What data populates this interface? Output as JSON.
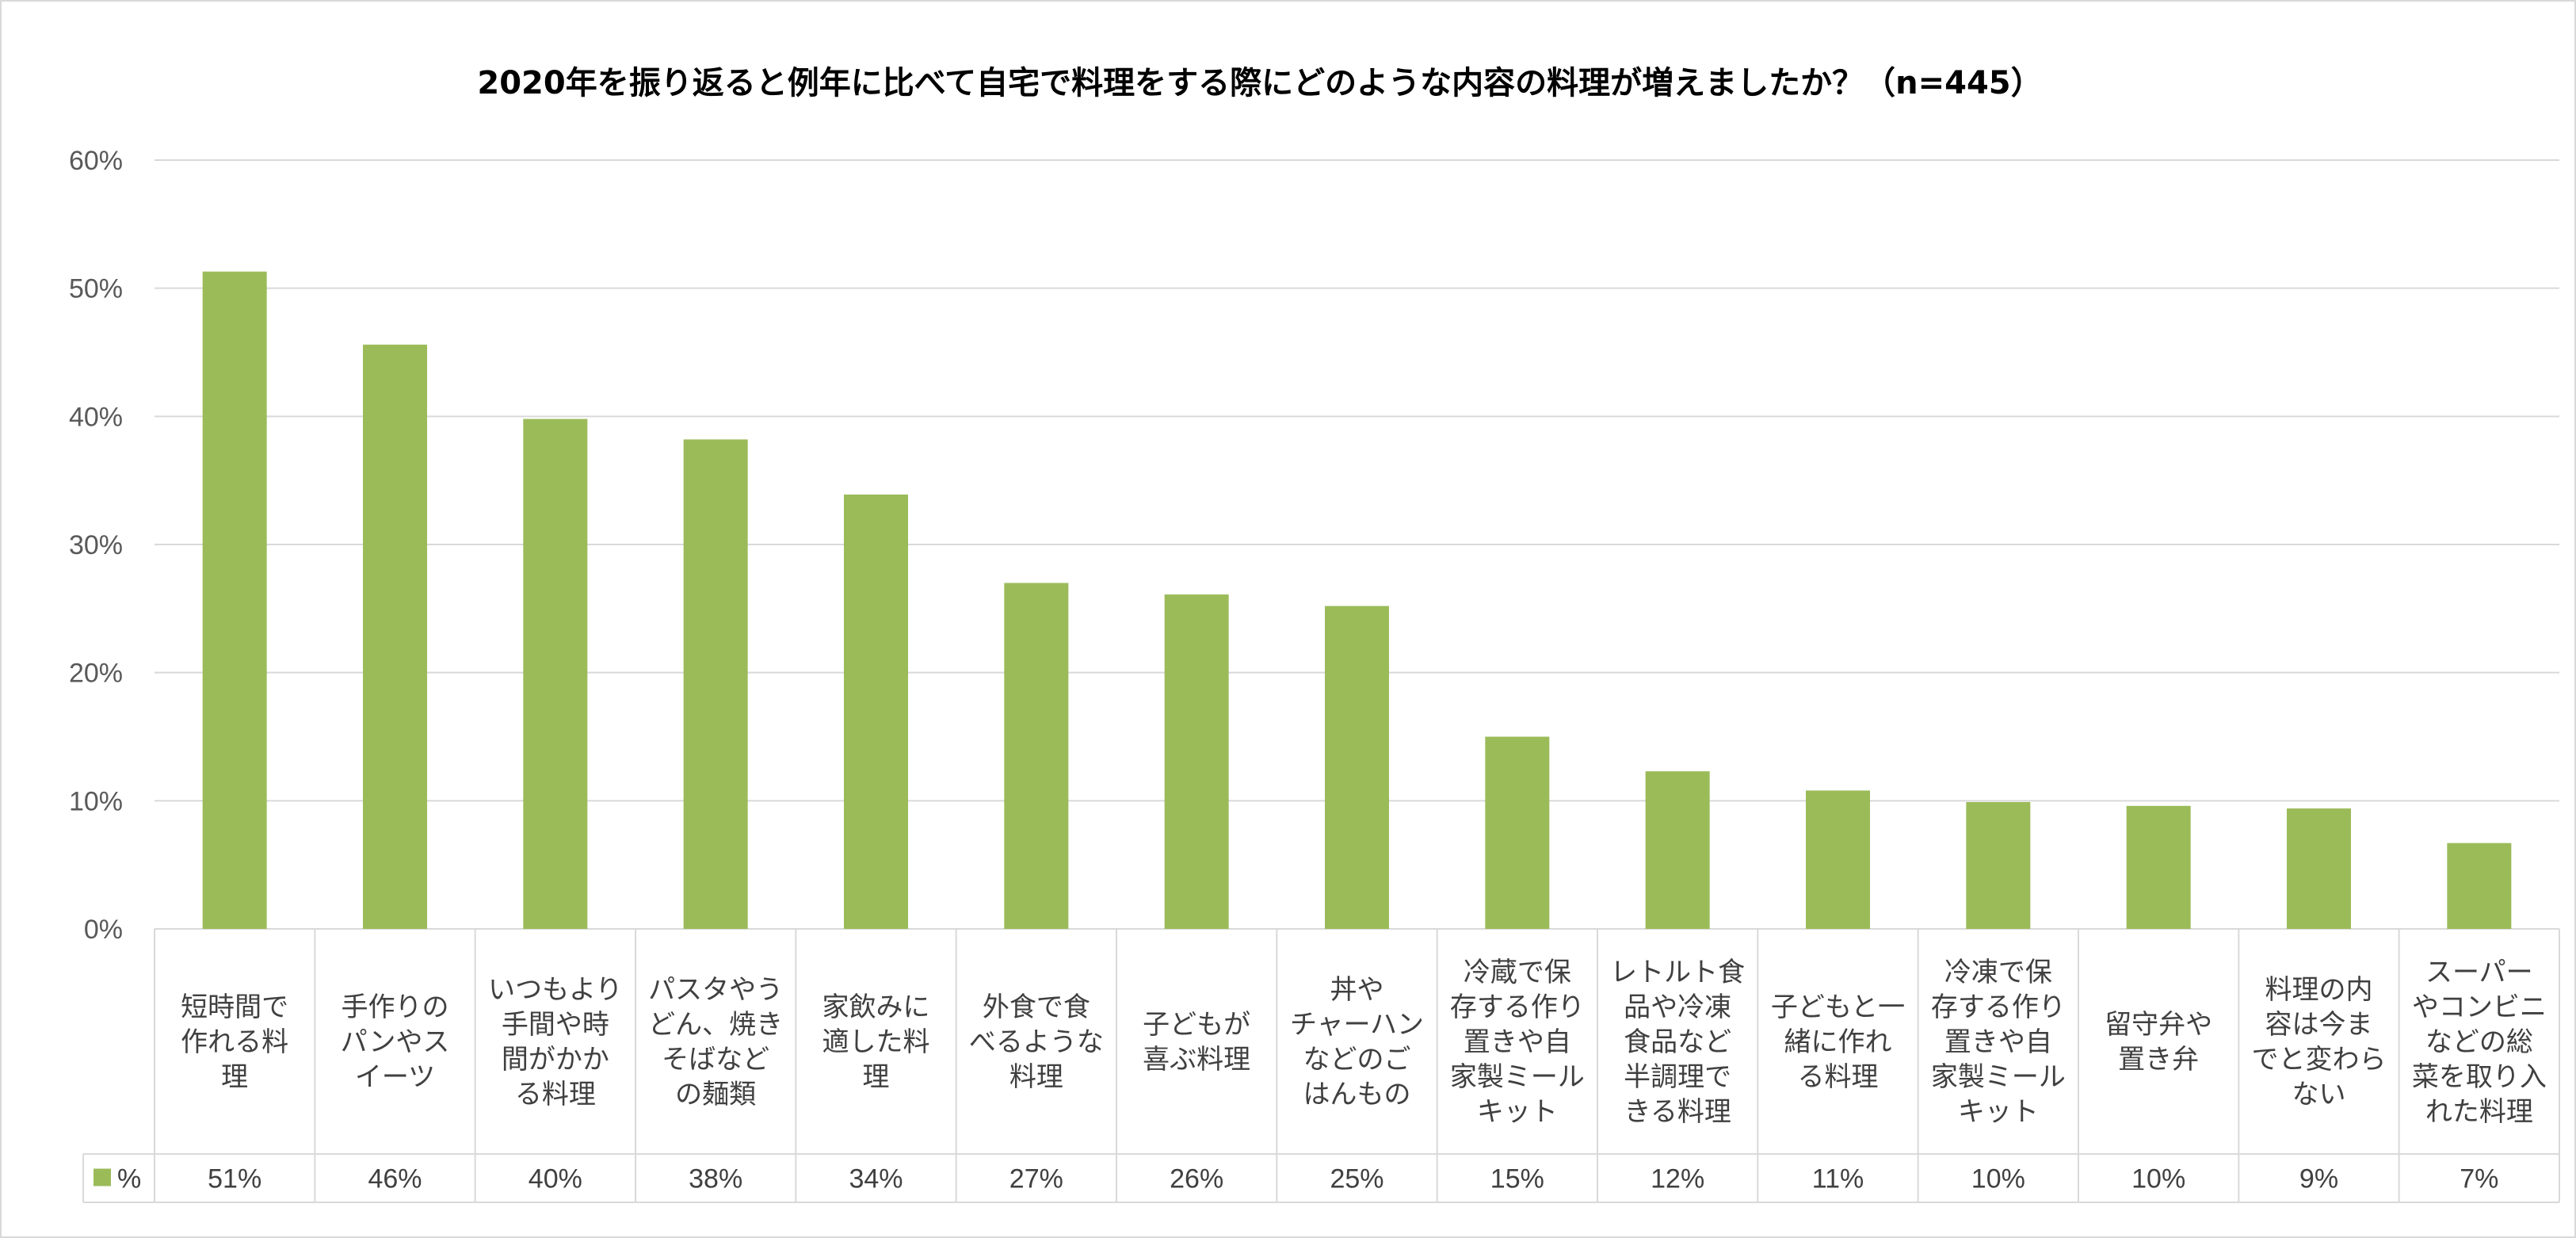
{
  "chart_data": {
    "type": "bar",
    "title": "2020年を振り返ると例年に比べて自宅で料理をする際にどのような内容の料理が増えましたか？（n=445）",
    "categories": [
      [
        "短時間で",
        "作れる料",
        "理"
      ],
      [
        "手作りの",
        "パンやス",
        "イーツ"
      ],
      [
        "いつもより",
        "手間や時",
        "間がかか",
        "る料理"
      ],
      [
        "パスタやう",
        "どん、焼き",
        "そばなど",
        "の麺類"
      ],
      [
        "家飲みに",
        "適した料",
        "理"
      ],
      [
        "外食で食",
        "べるような",
        "料理"
      ],
      [
        "子どもが",
        "喜ぶ料理"
      ],
      [
        "丼や",
        "チャーハン",
        "などのご",
        "はんもの"
      ],
      [
        "冷蔵で保",
        "存する作り",
        "置きや自",
        "家製ミール",
        "キット"
      ],
      [
        "レトルト食",
        "品や冷凍",
        "食品など",
        "半調理で",
        "きる料理"
      ],
      [
        "子どもと一",
        "緒に作れ",
        "る料理"
      ],
      [
        "冷凍で保",
        "存する作り",
        "置きや自",
        "家製ミール",
        "キット"
      ],
      [
        "留守弁や",
        "置き弁"
      ],
      [
        "料理の内",
        "容は今ま",
        "でと変わら",
        "ない"
      ],
      [
        "スーパー",
        "やコンビニ",
        "などの総",
        "菜を取り入",
        "れた料理"
      ]
    ],
    "values": [
      51.3,
      45.6,
      39.8,
      38.2,
      33.9,
      27.0,
      26.1,
      25.2,
      15.0,
      12.3,
      10.8,
      9.9,
      9.6,
      9.4,
      6.7
    ],
    "value_labels": [
      "51%",
      "46%",
      "40%",
      "38%",
      "34%",
      "27%",
      "26%",
      "25%",
      "15%",
      "12%",
      "11%",
      "10%",
      "10%",
      "9%",
      "7%"
    ],
    "series": [
      {
        "name": "%",
        "color": "#9bbb59"
      }
    ],
    "ylim": [
      0,
      60
    ],
    "yticks": [
      0,
      10,
      20,
      30,
      40,
      50,
      60
    ],
    "ytick_labels": [
      "0%",
      "10%",
      "20%",
      "30%",
      "40%",
      "50%",
      "60%"
    ],
    "grid": true,
    "legend": "data-table-left"
  }
}
